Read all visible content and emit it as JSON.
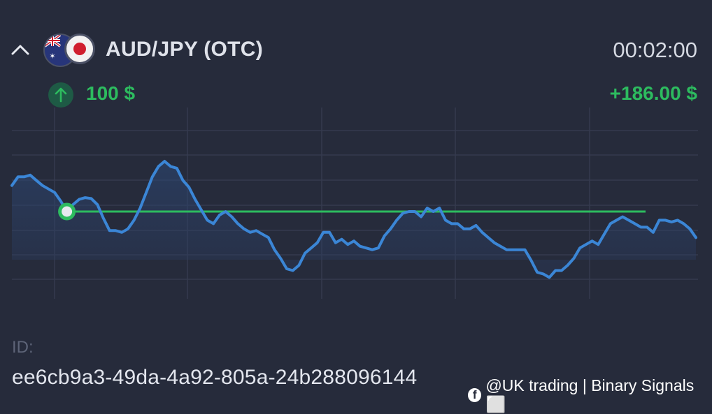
{
  "header": {
    "pair": "AUD/JPY (OTC)",
    "timer": "00:02:00",
    "flags": [
      "australia-flag-icon",
      "japan-flag-icon"
    ]
  },
  "trade": {
    "direction_icon": "arrow-up-icon",
    "amount": "100 $",
    "profit": "+186.00 $"
  },
  "trade_id": {
    "label": "ID:",
    "value": "ee6cb9a3-49da-4a92-805a-24b288096144"
  },
  "watermark": {
    "icon": "facebook-icon",
    "text": "@UK trading | Binary Signals ⬜"
  },
  "colors": {
    "background": "#262b3b",
    "price_line": "#3b86d6",
    "strike_line": "#2dbb5f",
    "profit": "#2dbb5f"
  },
  "chart_data": {
    "type": "line",
    "series": [
      {
        "values": [
          30,
          40,
          40,
          42,
          36,
          30,
          26,
          22,
          12,
          0,
          8,
          14,
          16,
          15,
          8,
          -8,
          -22,
          -22,
          -24,
          -20,
          -10,
          4,
          22,
          40,
          52,
          58,
          52,
          50,
          36,
          28,
          14,
          2,
          -10,
          -14,
          -4,
          0,
          -6,
          -14,
          -20,
          -24,
          -22,
          -26,
          -30,
          -44,
          -54,
          -66,
          -68,
          -62,
          -48,
          -42,
          -36,
          -24,
          -24,
          -36,
          -32,
          -38,
          -34,
          -40,
          -42,
          -44,
          -42,
          -28,
          -20,
          -10,
          -2,
          0,
          0,
          -6,
          4,
          0,
          4,
          -10,
          -14,
          -14,
          -20,
          -20,
          -16,
          -24,
          -30,
          -36,
          -40,
          -44,
          -44,
          -44,
          -44,
          -56,
          -70,
          -72,
          -76,
          -68,
          -68,
          -62,
          -54,
          -42,
          -38,
          -34,
          -38,
          -26,
          -14,
          -10,
          -6,
          -10,
          -14,
          -18,
          -18,
          -24,
          -10,
          -10,
          -12,
          -10,
          -14,
          -20,
          -30
        ],
        "entry_index": 9
      }
    ],
    "strike_value": 0,
    "ylim": [
      -95,
      95
    ],
    "grid": true,
    "marker": "entry-point"
  }
}
